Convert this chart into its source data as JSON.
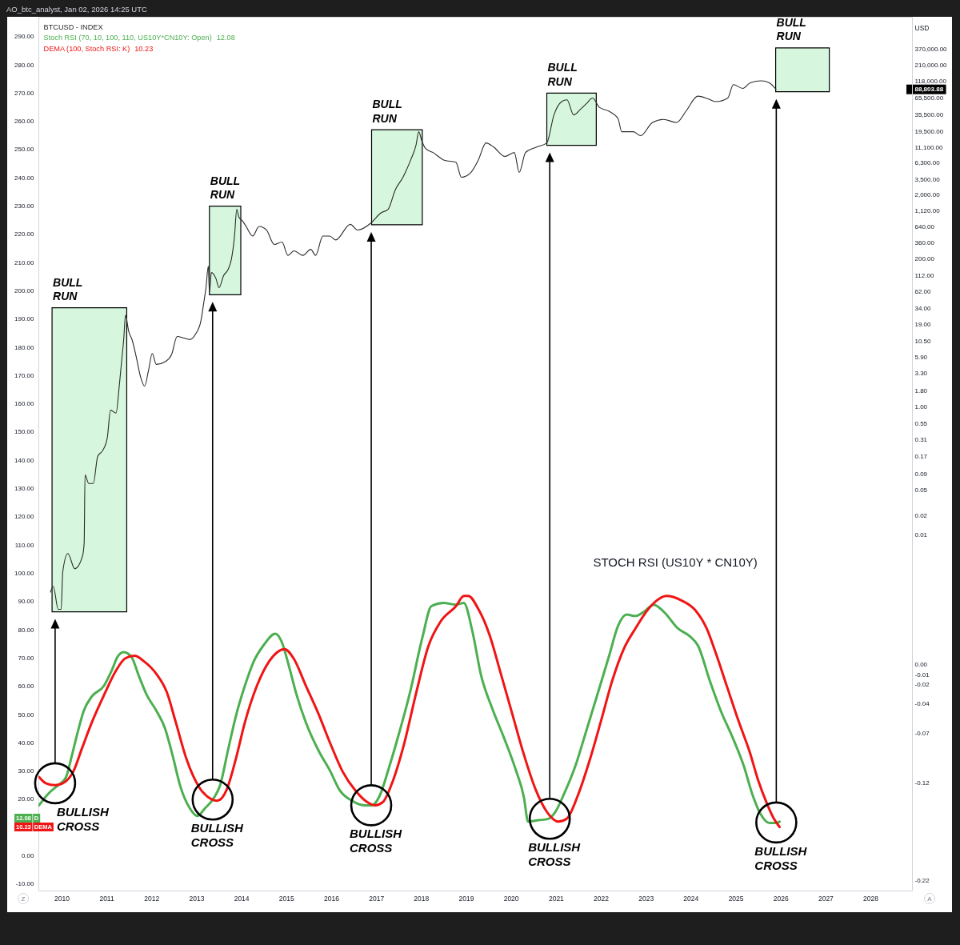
{
  "chart_data": {
    "type": "line",
    "series": [
      {
        "name": "BTCUSD - INDEX",
        "axis": "y2",
        "color": "#2b2b2b",
        "x": [
          "2009-10-03",
          "2009-10-26",
          "2009-12-05",
          "2009-12-29",
          "2010-01-11",
          "2010-02-21",
          "2010-04-19",
          "2010-06-20",
          "2010-07-04",
          "2010-07-11",
          "2010-08-10",
          "2010-09-16",
          "2010-10-22",
          "2010-12-02",
          "2011-01-08",
          "2011-02-03",
          "2011-03-20",
          "2011-04-15",
          "2011-05-07",
          "2011-05-21",
          "2011-06-05",
          "2011-07-01",
          "2011-07-29",
          "2011-09-02",
          "2011-10-04",
          "2011-11-07",
          "2011-12-09",
          "2012-01-08",
          "2012-02-10",
          "2012-04-26",
          "2012-06-13",
          "2012-07-29",
          "2012-09-23",
          "2012-11-10",
          "2012-12-27",
          "2013-02-07",
          "2013-03-02",
          "2013-03-20",
          "2013-04-08",
          "2013-04-17",
          "2013-05-03",
          "2013-06-09",
          "2013-07-04",
          "2013-08-10",
          "2013-09-16",
          "2013-10-11",
          "2013-11-07",
          "2013-11-25",
          "2013-12-13",
          "2014-01-08",
          "2014-02-03",
          "2014-04-04",
          "2014-05-25",
          "2014-07-22",
          "2014-09-27",
          "2014-11-28",
          "2015-01-15",
          "2015-03-05",
          "2015-05-17",
          "2015-07-19",
          "2015-08-28",
          "2015-10-26",
          "2015-12-20",
          "2016-02-07",
          "2016-06-05",
          "2016-08-03",
          "2016-11-25",
          "2017-02-07",
          "2017-04-08",
          "2017-06-05",
          "2017-08-07",
          "2017-10-08",
          "2017-11-21",
          "2017-12-13",
          "2018-01-08",
          "2018-02-07",
          "2018-04-08",
          "2018-07-08",
          "2018-10-11",
          "2018-11-25",
          "2019-02-10",
          "2019-04-11",
          "2019-06-13",
          "2019-08-14",
          "2019-11-14",
          "2020-01-29",
          "2020-03-09",
          "2020-04-29",
          "2020-07-29",
          "2020-10-19",
          "2020-12-16",
          "2021-02-17",
          "2021-04-01",
          "2021-05-25",
          "2021-07-19",
          "2021-09-05",
          "2021-10-26",
          "2021-12-20",
          "2022-03-05",
          "2022-05-21",
          "2022-06-20",
          "2022-09-23",
          "2022-11-21",
          "2023-02-25",
          "2023-05-25",
          "2023-09-09",
          "2023-11-25",
          "2024-02-28",
          "2024-05-25",
          "2024-07-26",
          "2024-10-29",
          "2024-12-13",
          "2025-02-28",
          "2025-04-29",
          "2025-07-29",
          "2025-10-01",
          "2025-11-25"
        ],
        "values": [
          0.0013,
          0.0016,
          0.0007,
          0.0007,
          0.0027,
          0.0052,
          0.003,
          0.0047,
          0.0077,
          0.087,
          0.064,
          0.064,
          0.17,
          0.21,
          0.33,
          0.89,
          0.8,
          2.1,
          5.8,
          11,
          27,
          15,
          11,
          5.8,
          3,
          2.1,
          3.7,
          6.8,
          4.6,
          5.1,
          6.5,
          12.5,
          11.8,
          11.2,
          13.8,
          22,
          42,
          72,
          156,
          61,
          124,
          100,
          72,
          111,
          139,
          193,
          461,
          1200,
          900,
          800,
          680,
          460,
          650,
          580,
          340,
          370,
          230,
          270,
          230,
          285,
          230,
          460,
          460,
          400,
          700,
          570,
          750,
          1050,
          1200,
          2400,
          3800,
          7000,
          12000,
          19400,
          13800,
          10600,
          9200,
          7000,
          6500,
          3800,
          4500,
          7000,
          13000,
          11200,
          8000,
          9200,
          4500,
          9200,
          11200,
          13000,
          35500,
          57100,
          61000,
          35500,
          43300,
          53000,
          65000,
          46600,
          40800,
          31100,
          19400,
          19400,
          16900,
          27100,
          30200,
          27100,
          40800,
          69700,
          62800,
          57100,
          65000,
          105400,
          91800,
          112600,
          120700,
          112600,
          88803.88
        ]
      },
      {
        "name": "Stoch RSI (70, 10, 100, 110, US10Y*CN10Y: Open)",
        "color": "#4caf50",
        "x": [
          "2009-07-02",
          "2009-09-20",
          "2009-12-04",
          "2010-02-05",
          "2010-03-25",
          "2010-05-13",
          "2010-07-02",
          "2010-09-04",
          "2010-12-12",
          "2011-02-13",
          "2011-04-02",
          "2011-05-21",
          "2011-07-22",
          "2011-09-23",
          "2011-11-25",
          "2012-02-09",
          "2012-04-22",
          "2012-06-23",
          "2012-08-25",
          "2012-11-09",
          "2013-01-10",
          "2013-03-11",
          "2013-05-25",
          "2013-07-13",
          "2013-09-15",
          "2013-11-17",
          "2014-01-30",
          "2014-04-13",
          "2014-06-27",
          "2014-10-05",
          "2014-11-24",
          "2015-01-26",
          "2015-03-27",
          "2015-06-10",
          "2015-09-19",
          "2015-12-27",
          "2016-03-10",
          "2016-06-19",
          "2016-09-27",
          "2016-11-28",
          "2017-01-29",
          "2017-04-13",
          "2017-06-26",
          "2017-10-04",
          "2018-01-13",
          "2018-03-26",
          "2018-07-04",
          "2018-10-12",
          "2018-12-14",
          "2019-02-23",
          "2019-05-02",
          "2019-08-04",
          "2019-11-05",
          "2020-02-07",
          "2020-04-16",
          "2020-05-20",
          "2020-08-10",
          "2020-11-01",
          "2020-12-28",
          "2021-03-06",
          "2021-06-08",
          "2021-09-10",
          "2021-12-11",
          "2022-03-12",
          "2022-05-21",
          "2022-07-30",
          "2022-10-08",
          "2022-12-17",
          "2023-03-07",
          "2023-05-28",
          "2023-09-22",
          "2023-12-23",
          "2024-03-02",
          "2024-06-03",
          "2024-09-05",
          "2024-12-07",
          "2025-03-08",
          "2025-05-17",
          "2025-07-25",
          "2025-10-04",
          "2025-11-20",
          "2025-12-24"
        ],
        "values": [
          17.9,
          22.2,
          25,
          27.7,
          35.3,
          43.9,
          51.5,
          56.4,
          60.2,
          65.6,
          70.5,
          72.1,
          70.5,
          63.5,
          56.9,
          51.5,
          45,
          35.3,
          24.4,
          16.8,
          14.1,
          16.8,
          20.6,
          25,
          37.4,
          49.3,
          60.2,
          68.9,
          74.3,
          78.6,
          75.9,
          66.7,
          56.9,
          47.2,
          37.4,
          29.8,
          23.3,
          19.5,
          17.9,
          17.9,
          21.2,
          30.9,
          41.8,
          58,
          77.5,
          88.4,
          89.5,
          88.9,
          89.5,
          79.3,
          64.2,
          52,
          41.9,
          30.8,
          20.7,
          12.1,
          12.6,
          13.1,
          15.6,
          21.7,
          31.8,
          45,
          58.1,
          71.2,
          81.4,
          85.4,
          84.9,
          86.4,
          88.9,
          86.4,
          80.4,
          77.8,
          74.3,
          62.2,
          51,
          41.9,
          31.8,
          21.7,
          14.6,
          11.6,
          11.6,
          12.08
        ]
      },
      {
        "name": "DEMA (100, Stoch RSI: K)",
        "color": "#f01414",
        "x": [
          "2009-07-02",
          "2009-08-26",
          "2009-11-10",
          "2010-01-23",
          "2010-04-06",
          "2010-06-20",
          "2010-09-04",
          "2010-12-12",
          "2011-03-20",
          "2011-06-03",
          "2011-08-17",
          "2011-11-01",
          "2012-02-09",
          "2012-05-05",
          "2012-07-18",
          "2012-10-13",
          "2013-01-22",
          "2013-05-01",
          "2013-06-19",
          "2013-09-03",
          "2013-11-17",
          "2014-01-30",
          "2014-05-08",
          "2014-08-16",
          "2014-12-19",
          "2015-03-02",
          "2015-06-10",
          "2015-09-19",
          "2015-12-27",
          "2016-04-04",
          "2016-07-13",
          "2016-10-21",
          "2016-12-22",
          "2017-02-24",
          "2017-05-08",
          "2017-08-16",
          "2017-11-24",
          "2018-03-02",
          "2018-06-10",
          "2018-10-12",
          "2018-12-15",
          "2019-01-20",
          "2019-04-10",
          "2019-07-11",
          "2019-10-13",
          "2020-01-14",
          "2020-04-16",
          "2020-07-18",
          "2020-10-19",
          "2021-01-21",
          "2021-03-29",
          "2021-07-01",
          "2021-10-02",
          "2022-01-04",
          "2022-04-05",
          "2022-07-07",
          "2022-10-08",
          "2023-02-03",
          "2023-06-20",
          "2023-10-15",
          "2024-02-09",
          "2024-05-11",
          "2024-07-19",
          "2024-10-21",
          "2025-01-22",
          "2025-04-24",
          "2025-07-03",
          "2025-09-11",
          "2025-11-08",
          "2025-12-24"
        ],
        "values": [
          27.9,
          25.7,
          25,
          26,
          29.8,
          38.5,
          47.2,
          56.9,
          65.6,
          69.9,
          70.8,
          68.9,
          64.5,
          58,
          47.2,
          34.2,
          24.4,
          20.1,
          19.5,
          23.3,
          34.2,
          47.2,
          60.2,
          68.9,
          73.2,
          69.9,
          60.2,
          50.4,
          39.6,
          29.8,
          23.3,
          19,
          17.9,
          19,
          25.5,
          39.6,
          58,
          74.3,
          83,
          88.4,
          92,
          92,
          87.5,
          78.3,
          64.2,
          50,
          35.8,
          23.7,
          15.6,
          12.1,
          13.1,
          21.7,
          33.8,
          48,
          62.2,
          73.3,
          80.4,
          88,
          92,
          90.5,
          86.9,
          80.4,
          72.3,
          60.1,
          48,
          36.9,
          26.7,
          18.6,
          13.1,
          10.23
        ]
      }
    ],
    "xlim": [
      "2009-06-27",
      "2028-12-04"
    ],
    "xticks": [
      "2010",
      "2011",
      "2012",
      "2013",
      "2014",
      "2015",
      "2016",
      "2017",
      "2018",
      "2019",
      "2020",
      "2021",
      "2022",
      "2023",
      "2024",
      "2025",
      "2026",
      "2027",
      "2028"
    ],
    "ylim": [
      -12.3,
      297
    ],
    "yticks": [
      {
        "value": -10,
        "label": "-10.00"
      },
      {
        "value": 0,
        "label": "0.00"
      },
      {
        "value": 20,
        "label": "20.00"
      },
      {
        "value": 30,
        "label": "30.00"
      },
      {
        "value": 40,
        "label": "40.00"
      },
      {
        "value": 50,
        "label": "50.00"
      },
      {
        "value": 60,
        "label": "60.00"
      },
      {
        "value": 70,
        "label": "70.00"
      },
      {
        "value": 80,
        "label": "80.00"
      },
      {
        "value": 90,
        "label": "90.00"
      },
      {
        "value": 100,
        "label": "100.00"
      },
      {
        "value": 110,
        "label": "110.00"
      },
      {
        "value": 120,
        "label": "120.00"
      },
      {
        "value": 130,
        "label": "130.00"
      },
      {
        "value": 140,
        "label": "140.00"
      },
      {
        "value": 150,
        "label": "150.00"
      },
      {
        "value": 160,
        "label": "160.00"
      },
      {
        "value": 170,
        "label": "170.00"
      },
      {
        "value": 180,
        "label": "180.00"
      },
      {
        "value": 190,
        "label": "190.00"
      },
      {
        "value": 200,
        "label": "200.00"
      },
      {
        "value": 210,
        "label": "210.00"
      },
      {
        "value": 220,
        "label": "220.00"
      },
      {
        "value": 230,
        "label": "230.00"
      },
      {
        "value": 240,
        "label": "240.00"
      },
      {
        "value": 250,
        "label": "250.00"
      },
      {
        "value": 260,
        "label": "260.00"
      },
      {
        "value": 270,
        "label": "270.00"
      },
      {
        "value": 280,
        "label": "280.00"
      },
      {
        "value": 290,
        "label": "290.00"
      }
    ],
    "y2lim": [
      2.9e-08,
      1200000
    ],
    "y2ticks": [
      {
        "value": 370000,
        "label": "370,000.00"
      },
      {
        "value": 210000,
        "label": "210,000.00"
      },
      {
        "value": 118000,
        "label": "118,000.00"
      },
      {
        "value": 88803.88,
        "label": "88,803.88"
      },
      {
        "value": 65500,
        "label": "65,500.00"
      },
      {
        "value": 35500,
        "label": "35,500.00"
      },
      {
        "value": 19500,
        "label": "19,500.00"
      },
      {
        "value": 11100,
        "label": "11,100.00"
      },
      {
        "value": 6300,
        "label": "6,300.00"
      },
      {
        "value": 3500,
        "label": "3,500.00"
      },
      {
        "value": 2000,
        "label": "2,000.00"
      },
      {
        "value": 1120,
        "label": "1,120.00"
      },
      {
        "value": 640,
        "label": "640.00"
      },
      {
        "value": 360,
        "label": "360.00"
      },
      {
        "value": 200,
        "label": "200.00"
      },
      {
        "value": 112,
        "label": "112.00"
      },
      {
        "value": 62,
        "label": "62.00"
      },
      {
        "value": 34,
        "label": "34.00"
      },
      {
        "value": 19,
        "label": "19.00"
      },
      {
        "value": 10.5,
        "label": "10.50"
      },
      {
        "value": 5.9,
        "label": "5.90"
      },
      {
        "value": 3.3,
        "label": "3.30"
      },
      {
        "value": 1.8,
        "label": "1.80"
      },
      {
        "value": 1,
        "label": "1.00"
      },
      {
        "value": 0.55,
        "label": "0.55"
      },
      {
        "value": 0.31,
        "label": "0.31"
      },
      {
        "value": 0.17,
        "label": "0.17"
      },
      {
        "value": 0.09,
        "label": "0.09"
      },
      {
        "value": 0.05,
        "label": "0.05"
      },
      {
        "value": 0.02,
        "label": "0.02"
      },
      {
        "value": 0.01,
        "label": "0.01"
      }
    ],
    "y2label": "USD",
    "y3lim": [
      -0.23,
      0.66
    ],
    "y3ticks": [
      {
        "value": 0,
        "label": "0.00"
      },
      -0.01,
      -0.02,
      -0.04,
      -0.07,
      -0.12,
      -0.22
    ],
    "log": "y2",
    "legend": "top left",
    "bands": [
      {
        "axis": "x",
        "from": "2009-10-16",
        "to": "2011-06-15",
        "color": "#d6f7dd"
      },
      {
        "axis": "x",
        "from": "2013-04-17",
        "to": "2013-12-28",
        "color": "#d6f7dd"
      },
      {
        "axis": "x",
        "from": "2016-11-25",
        "to": "2018-01-11",
        "color": "#d6f7dd"
      },
      {
        "axis": "x",
        "from": "2020-10-19",
        "to": "2021-11-25",
        "color": "#d6f7dd"
      },
      {
        "axis": "x",
        "from": "2025-11-22",
        "to": "2027-02-01",
        "color": "#d6f7dd"
      }
    ],
    "annotations": [
      "AO_btc_analyst, Jan 02, 2026 14:25 UTC",
      "STOCH RSI (US10Y * CN10Y)",
      "Z",
      "A",
      "D",
      "DEMA",
      "12.08",
      "10.23",
      {
        "text": "BULL\nRUN",
        "x": "2009-10-16",
        "y": 194
      },
      {
        "text": "BULL\nRUN",
        "x": "2013-04-17",
        "y": 230
      },
      {
        "text": "BULL\nRUN",
        "x": "2016-11-25",
        "y": 257
      },
      {
        "text": "BULL\nRUN",
        "x": "2020-10-19",
        "y": 270
      },
      {
        "text": "BULL\nRUN",
        "x": "2025-11-22",
        "y": 286
      },
      {
        "text": "BULLISH\nCROSS",
        "x": "2009-11-10",
        "y": 25.7
      },
      {
        "text": "BULLISH\nCROSS",
        "x": "2013-05-13",
        "y": 19.9
      },
      {
        "text": "BULLISH\nCROSS",
        "x": "2016-11-22",
        "y": 17.9
      },
      {
        "text": "BULLISH\nCROSS",
        "x": "2020-11-12",
        "y": 13.1
      },
      {
        "text": "BULLISH\nCROSS",
        "x": "2025-11-27",
        "y": 11.8
      }
    ]
  }
}
